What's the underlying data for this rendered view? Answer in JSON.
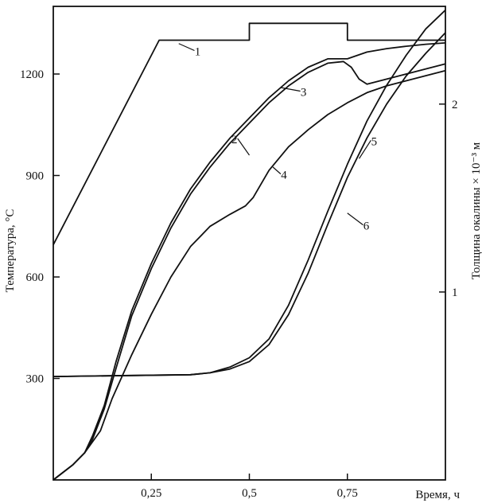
{
  "chart_data": {
    "type": "line",
    "title": "",
    "xlabel": "Время, ч",
    "ylabel": "Температура, °С",
    "y2label": "Толщина окалины × 10⁻³ м",
    "xlim": [
      0,
      1.0
    ],
    "ylim": [
      0,
      1400
    ],
    "y2lim": [
      0,
      2.52
    ],
    "grid": false,
    "legend": "none",
    "x_ticks": [
      {
        "value": 0.25,
        "label": "0,25"
      },
      {
        "value": 0.5,
        "label": "0,5"
      },
      {
        "value": 0.75,
        "label": "0,75"
      }
    ],
    "y_ticks": [
      {
        "value": 300,
        "label": "300"
      },
      {
        "value": 600,
        "label": "600"
      },
      {
        "value": 900,
        "label": "900"
      },
      {
        "value": 1200,
        "label": "1200"
      }
    ],
    "y2_ticks": [
      {
        "value": 1,
        "label": "1"
      },
      {
        "value": 2,
        "label": "2"
      }
    ],
    "series": [
      {
        "name": "1",
        "axis": "left",
        "label_at": [
          0.36,
          1260
        ],
        "leader_to": [
          0.32,
          1290
        ],
        "points": [
          [
            0,
            695
          ],
          [
            0.27,
            1300
          ],
          [
            0.5,
            1300
          ],
          [
            0.5,
            1350
          ],
          [
            0.75,
            1350
          ],
          [
            0.75,
            1300
          ],
          [
            1.0,
            1300
          ]
        ]
      },
      {
        "name": "2",
        "axis": "left",
        "label_at": [
          0.47,
          1000
        ],
        "leader_to": [
          0.5,
          960
        ],
        "points": [
          [
            0,
            0
          ],
          [
            0.05,
            45
          ],
          [
            0.08,
            80
          ],
          [
            0.1,
            130
          ],
          [
            0.13,
            220
          ],
          [
            0.16,
            350
          ],
          [
            0.2,
            500
          ],
          [
            0.25,
            640
          ],
          [
            0.3,
            760
          ],
          [
            0.35,
            860
          ],
          [
            0.4,
            940
          ],
          [
            0.45,
            1010
          ],
          [
            0.5,
            1070
          ],
          [
            0.55,
            1130
          ],
          [
            0.6,
            1180
          ],
          [
            0.65,
            1220
          ],
          [
            0.7,
            1245
          ],
          [
            0.75,
            1245
          ],
          [
            0.8,
            1265
          ],
          [
            0.85,
            1275
          ],
          [
            0.9,
            1282
          ],
          [
            0.95,
            1288
          ],
          [
            1.0,
            1292
          ]
        ]
      },
      {
        "name": "3",
        "axis": "left",
        "label_at": [
          0.63,
          1140
        ],
        "leader_to": [
          0.58,
          1160
        ],
        "points": [
          [
            0,
            0
          ],
          [
            0.05,
            45
          ],
          [
            0.08,
            80
          ],
          [
            0.1,
            120
          ],
          [
            0.13,
            210
          ],
          [
            0.16,
            330
          ],
          [
            0.2,
            485
          ],
          [
            0.25,
            625
          ],
          [
            0.3,
            745
          ],
          [
            0.35,
            845
          ],
          [
            0.4,
            925
          ],
          [
            0.45,
            995
          ],
          [
            0.5,
            1055
          ],
          [
            0.55,
            1115
          ],
          [
            0.6,
            1165
          ],
          [
            0.65,
            1205
          ],
          [
            0.7,
            1232
          ],
          [
            0.74,
            1237
          ],
          [
            0.76,
            1220
          ],
          [
            0.78,
            1185
          ],
          [
            0.8,
            1170
          ],
          [
            0.85,
            1185
          ],
          [
            0.9,
            1200
          ],
          [
            0.95,
            1215
          ],
          [
            1.0,
            1230
          ]
        ]
      },
      {
        "name": "4",
        "axis": "left",
        "label_at": [
          0.58,
          895
        ],
        "leader_to": [
          0.56,
          925
        ],
        "points": [
          [
            0,
            0
          ],
          [
            0.05,
            45
          ],
          [
            0.08,
            80
          ],
          [
            0.12,
            145
          ],
          [
            0.15,
            240
          ],
          [
            0.2,
            370
          ],
          [
            0.25,
            490
          ],
          [
            0.3,
            600
          ],
          [
            0.35,
            690
          ],
          [
            0.4,
            750
          ],
          [
            0.45,
            785
          ],
          [
            0.49,
            810
          ],
          [
            0.51,
            835
          ],
          [
            0.55,
            915
          ],
          [
            0.6,
            985
          ],
          [
            0.65,
            1035
          ],
          [
            0.7,
            1080
          ],
          [
            0.75,
            1115
          ],
          [
            0.8,
            1145
          ],
          [
            0.85,
            1165
          ],
          [
            0.9,
            1180
          ],
          [
            0.95,
            1195
          ],
          [
            1.0,
            1210
          ]
        ]
      },
      {
        "name": "5",
        "axis": "right",
        "label_at": [
          0.81,
          1.79
        ],
        "leader_to": [
          0.78,
          1.71
        ],
        "points": [
          [
            0,
            0.55
          ],
          [
            0.35,
            0.56
          ],
          [
            0.4,
            0.57
          ],
          [
            0.45,
            0.6
          ],
          [
            0.5,
            0.65
          ],
          [
            0.55,
            0.75
          ],
          [
            0.6,
            0.93
          ],
          [
            0.65,
            1.17
          ],
          [
            0.7,
            1.43
          ],
          [
            0.75,
            1.68
          ],
          [
            0.8,
            1.91
          ],
          [
            0.85,
            2.1
          ],
          [
            0.9,
            2.26
          ],
          [
            0.95,
            2.4
          ],
          [
            1.0,
            2.5
          ]
        ]
      },
      {
        "name": "6",
        "axis": "right",
        "label_at": [
          0.79,
          1.34
        ],
        "leader_to": [
          0.75,
          1.42
        ],
        "points": [
          [
            0,
            0.55
          ],
          [
            0.35,
            0.56
          ],
          [
            0.4,
            0.57
          ],
          [
            0.45,
            0.59
          ],
          [
            0.5,
            0.63
          ],
          [
            0.55,
            0.72
          ],
          [
            0.6,
            0.88
          ],
          [
            0.65,
            1.1
          ],
          [
            0.7,
            1.36
          ],
          [
            0.75,
            1.61
          ],
          [
            0.8,
            1.82
          ],
          [
            0.85,
            2.0
          ],
          [
            0.9,
            2.15
          ],
          [
            0.95,
            2.27
          ],
          [
            1.0,
            2.38
          ]
        ]
      }
    ]
  }
}
